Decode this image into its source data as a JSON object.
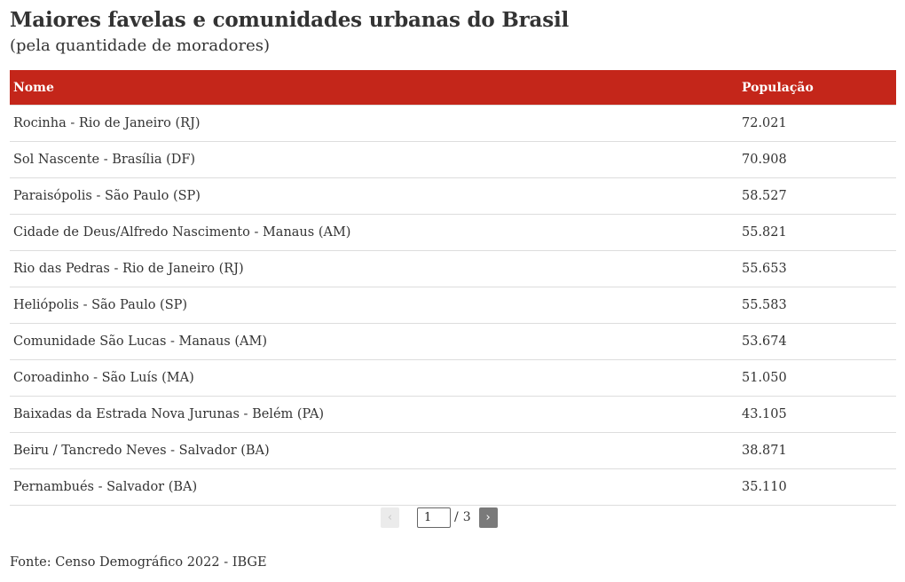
{
  "header": {
    "title": "Maiores favelas e comunidades urbanas do Brasil",
    "subtitle": "(pela quantidade de moradores)"
  },
  "table": {
    "columns": [
      "Nome",
      "População"
    ],
    "rows": [
      [
        "Rocinha - Rio de Janeiro (RJ)",
        "72.021"
      ],
      [
        "Sol Nascente - Brasília (DF)",
        "70.908"
      ],
      [
        "Paraisópolis - São Paulo (SP)",
        "58.527"
      ],
      [
        "Cidade de Deus/Alfredo Nascimento - Manaus (AM)",
        "55.821"
      ],
      [
        "Rio das Pedras - Rio de Janeiro (RJ)",
        "55.653"
      ],
      [
        "Heliópolis - São Paulo (SP)",
        "55.583"
      ],
      [
        "Comunidade São Lucas - Manaus (AM)",
        "53.674"
      ],
      [
        "Coroadinho - São Luís (MA)",
        "51.050"
      ],
      [
        "Baixadas da Estrada Nova Jurunas - Belém (PA)",
        "43.105"
      ],
      [
        "Beiru / Tancredo Neves - Salvador (BA)",
        "38.871"
      ],
      [
        "Pernambués - Salvador (BA)",
        "35.110"
      ]
    ]
  },
  "pagination": {
    "prev_label": "‹",
    "next_label": "›",
    "current_page": "1",
    "separator": "/",
    "total_pages": "3"
  },
  "footer": {
    "source": "Fonte: Censo Demográfico 2022 - IBGE"
  },
  "colors": {
    "header_background": "#c4261a",
    "header_text": "#ffffff",
    "row_border": "#dddddd"
  }
}
